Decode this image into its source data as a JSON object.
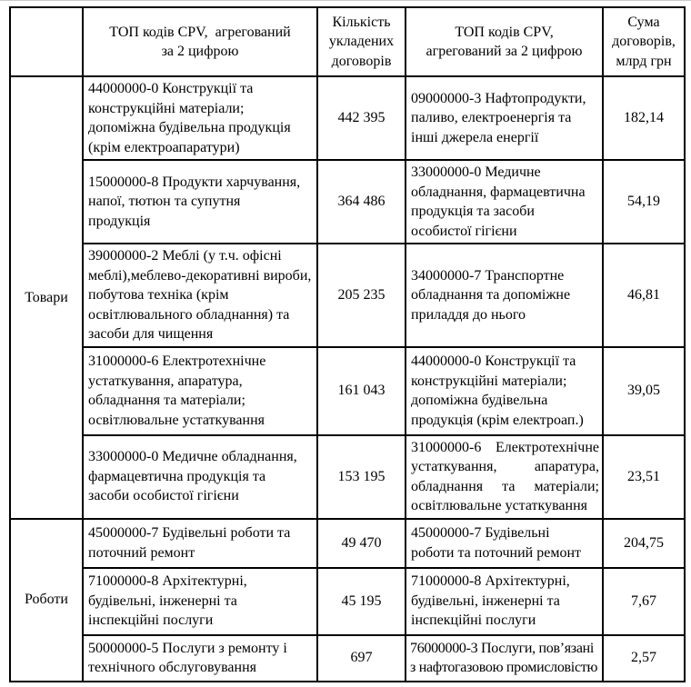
{
  "table": {
    "headers": {
      "group": "",
      "col_left_desc": "ТОП кодів CPV,  агрегований за 2 цифрою",
      "col_count": "Кількість укладених договорів",
      "col_right_desc": "ТОП кодів CPV, агрегований за 2 цифрою",
      "col_sum": "Сума договорів, млрд грн"
    },
    "groups": [
      {
        "label": "Товари",
        "rows": [
          {
            "left": "44000000-0 Конструкції та конструкційні матеріали; допоміжна будівельна продукція (крім електроапаратури)",
            "count": "442 395",
            "right": "09000000-3 Нафтопродукти, паливо, електроенергія та інші джерела енергії",
            "sum": "182,14"
          },
          {
            "left": "15000000-8 Продукти харчування, напої, тютюн та супутня продукція",
            "count": "364 486",
            "right": "33000000-0 Медичне обладнання, фармацевтична продукція та засоби особистої гігієни",
            "sum": "54,19"
          },
          {
            "left": "39000000-2 Меблі (у т.ч. офісні меблі),меблево-декоративні вироби, побутова техніка (крім освітлювального обладнання) та засоби для чищення",
            "count": "205 235",
            "right": "34000000-7 Транспортне обладнання та допоміжне приладдя до нього",
            "sum": "46,81"
          },
          {
            "left": "31000000-6 Електротехнічне устаткування, апаратура, обладнання та матеріали; освітлювальне устаткування",
            "count": "161 043",
            "right": "44000000-0 Конструкції та конструкційні матеріали; допоміжна будівельна продукція (крім електроап.)",
            "sum": "39,05"
          },
          {
            "left": "33000000-0 Медичне обладнання, фармацевтична продукція та засоби особистої гігієни",
            "count": "153 195",
            "right": "31000000-6 Електротехнічне устаткування, апаратура, обладнання та матеріали; освітлювальне устаткування",
            "sum": "23,51"
          }
        ]
      },
      {
        "label": "Роботи",
        "rows": [
          {
            "left": "45000000-7 Будівельні роботи та поточний ремонт",
            "count": "49 470",
            "right": "45000000-7 Будівельні роботи та поточний ремонт",
            "sum": "204,75"
          },
          {
            "left": "71000000-8 Архітектурні, будівельні, інженерні та інспекційні послуги",
            "count": "45 195",
            "right": "71000000-8 Архітектурні, будівельні, інженерні та інспекційні послуги",
            "sum": "7,67"
          },
          {
            "left": "50000000-5 Послуги з ремонту і технічного обслуговування",
            "count": "697",
            "right": "76000000-3 Послуги, пов’язані з нафтогазовою промисловістю",
            "sum": "2,57"
          }
        ]
      }
    ]
  }
}
